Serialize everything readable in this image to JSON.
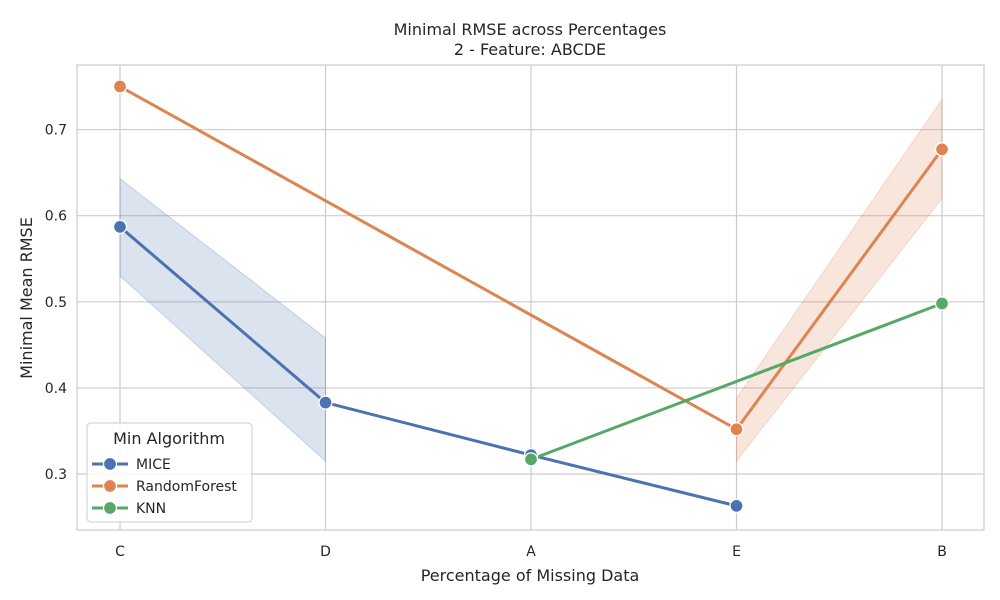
{
  "chart_data": {
    "type": "line",
    "title_line1": "Minimal RMSE across Percentages",
    "title_line2": "2 - Feature: ABCDE",
    "xlabel": "Percentage of Missing Data",
    "ylabel": "Minimal Mean RMSE",
    "categories": [
      "C",
      "D",
      "A",
      "E",
      "B"
    ],
    "ylim": [
      0.235,
      0.775
    ],
    "yticks": [
      0.3,
      0.4,
      0.5,
      0.6,
      0.7
    ],
    "ytick_labels": [
      "0.3",
      "0.4",
      "0.5",
      "0.6",
      "0.7"
    ],
    "grid": true,
    "legend": {
      "title": "Min Algorithm",
      "placement": "lower-left"
    },
    "series": [
      {
        "name": "MICE",
        "color": "#4c72b0",
        "points": [
          {
            "x": "C",
            "y": 0.587
          },
          {
            "x": "D",
            "y": 0.383
          },
          {
            "x": "A",
            "y": 0.322
          },
          {
            "x": "E",
            "y": 0.263
          }
        ],
        "band": [
          {
            "x": "C",
            "lo": 0.53,
            "hi": 0.643
          },
          {
            "x": "D",
            "lo": 0.315,
            "hi": 0.458
          }
        ]
      },
      {
        "name": "RandomForest",
        "color": "#dd8452",
        "points": [
          {
            "x": "C",
            "y": 0.75
          },
          {
            "x": "E",
            "y": 0.352
          },
          {
            "x": "B",
            "y": 0.677
          }
        ],
        "band": [
          {
            "x": "E",
            "lo": 0.315,
            "hi": 0.388
          },
          {
            "x": "B",
            "lo": 0.62,
            "hi": 0.735
          }
        ]
      },
      {
        "name": "KNN",
        "color": "#55a868",
        "points": [
          {
            "x": "A",
            "y": 0.317
          },
          {
            "x": "B",
            "y": 0.498
          }
        ],
        "band": []
      }
    ]
  }
}
